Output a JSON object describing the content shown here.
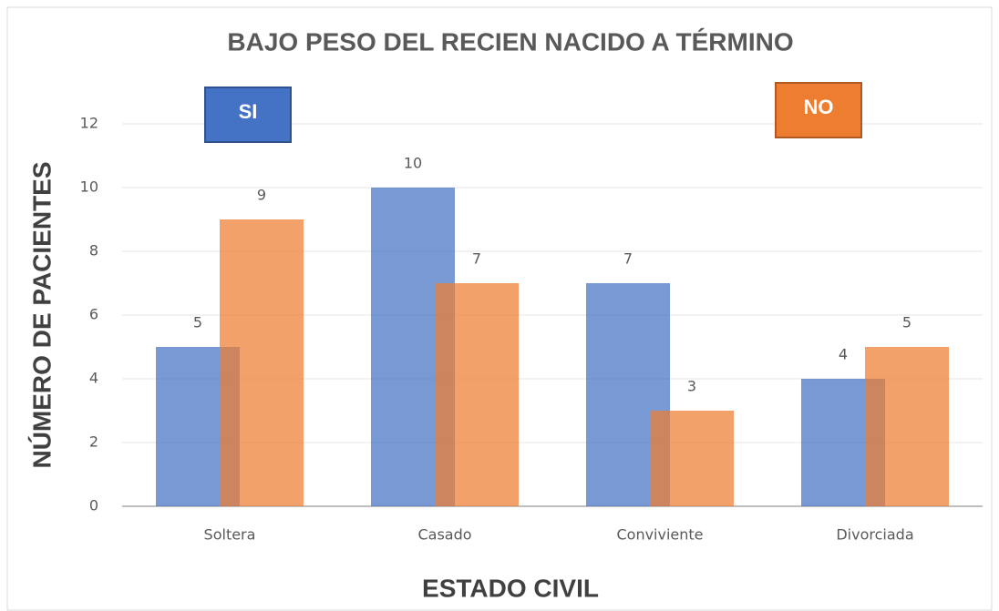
{
  "chart_data": {
    "type": "bar",
    "title": "BAJO PESO DEL RECIEN NACIDO A TÉRMINO",
    "x_label": "ESTADO CIVIL",
    "y_label": "NÚMERO DE PACIENTES",
    "categories": [
      "Soltera",
      "Casado",
      "Conviviente",
      "Divorciada"
    ],
    "series": [
      {
        "name": "SI",
        "color": "#4472c4",
        "values": [
          5,
          10,
          7,
          4
        ]
      },
      {
        "name": "NO",
        "color": "#ed7d31",
        "values": [
          9,
          7,
          3,
          5
        ]
      }
    ],
    "ylim": [
      0,
      12
    ],
    "yticks": [
      0,
      2,
      4,
      6,
      8,
      10,
      12
    ],
    "grid": true
  }
}
